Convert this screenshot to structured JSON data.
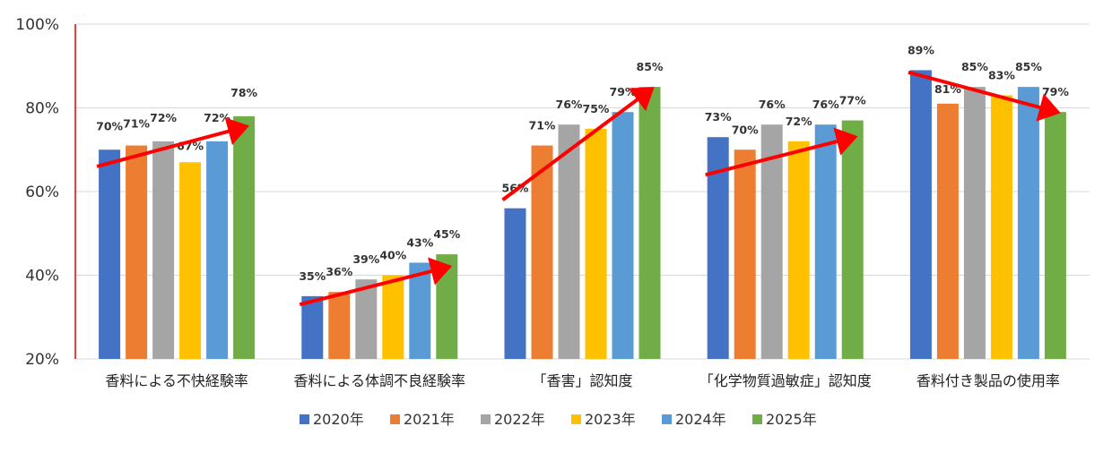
{
  "chart_data": {
    "type": "bar",
    "title": "",
    "xlabel": "",
    "ylabel": "",
    "ylim": [
      20,
      100
    ],
    "yticks": [
      "20%",
      "40%",
      "60%",
      "80%",
      "100%"
    ],
    "ytick_values": [
      20,
      40,
      60,
      80,
      100
    ],
    "grid": true,
    "legend_position": "bottom",
    "categories": [
      "香料による不快経験率",
      "香料による体調不良経験率",
      "「香害」認知度",
      "「化学物質過敏症」認知度",
      "香料付き製品の使用率"
    ],
    "series": [
      {
        "name": "2020年",
        "color": "#4472C4",
        "values": [
          70,
          35,
          56,
          73,
          89
        ],
        "labels": [
          "70%",
          "35%",
          "56%",
          "73%",
          "89%"
        ]
      },
      {
        "name": "2021年",
        "color": "#ED7D31",
        "values": [
          71,
          36,
          71,
          70,
          81
        ],
        "labels": [
          "71%",
          "36%",
          "71%",
          "70%",
          "81%"
        ]
      },
      {
        "name": "2022年",
        "color": "#A5A5A5",
        "values": [
          72,
          39,
          76,
          76,
          85
        ],
        "labels": [
          "72%",
          "39%",
          "76%",
          "76%",
          "85%"
        ]
      },
      {
        "name": "2023年",
        "color": "#FFC000",
        "values": [
          67,
          40,
          75,
          72,
          83
        ],
        "labels": [
          "67%",
          "40%",
          "75%",
          "72%",
          "83%"
        ]
      },
      {
        "name": "2024年",
        "color": "#5B9BD5",
        "values": [
          72,
          43,
          79,
          76,
          85
        ],
        "labels": [
          "72%",
          "43%",
          "79%",
          "76%",
          "85%"
        ]
      },
      {
        "name": "2025年",
        "color": "#70AD47",
        "values": [
          78,
          45,
          85,
          77,
          79
        ],
        "labels": [
          "78%",
          "45%",
          "85%",
          "77%",
          "79%"
        ]
      }
    ],
    "annotations": {
      "type": "trend-arrow",
      "color": "#FF0000",
      "arrows": [
        {
          "category": 0,
          "from_value": 66,
          "to_value": 75.5,
          "direction": "up"
        },
        {
          "category": 1,
          "from_value": 33,
          "to_value": 42,
          "direction": "up"
        },
        {
          "category": 2,
          "from_value": 58,
          "to_value": 84.5,
          "direction": "up"
        },
        {
          "category": 3,
          "from_value": 64,
          "to_value": 73,
          "direction": "up"
        },
        {
          "category": 4,
          "from_value": 88.5,
          "to_value": 79,
          "direction": "down"
        }
      ]
    },
    "axis_line_color": "#E00000"
  }
}
